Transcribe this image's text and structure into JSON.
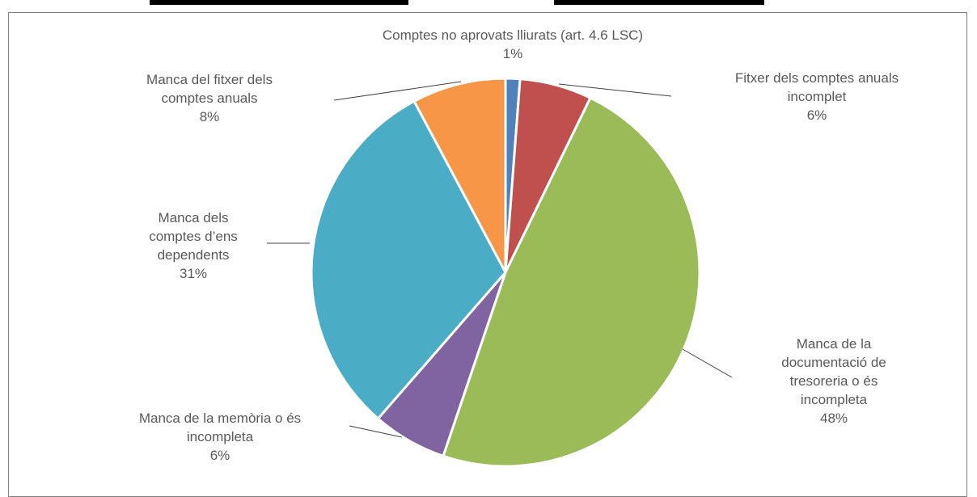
{
  "chart_data": {
    "type": "pie",
    "title": "",
    "slices": [
      {
        "label_lines": [
          "Comptes no aprovats lliurats (art. 4.6 LSC)"
        ],
        "pct_label": "1%",
        "value": 1.2,
        "color": "#4f81bd"
      },
      {
        "label_lines": [
          "Fitxer dels comptes anuals",
          "incomplet"
        ],
        "pct_label": "6%",
        "value": 6.0,
        "color": "#c0504d"
      },
      {
        "label_lines": [
          "Manca de la",
          "documentació de",
          "tresoreria o és",
          "incompleta"
        ],
        "pct_label": "48%",
        "value": 48.0,
        "color": "#9bbb59"
      },
      {
        "label_lines": [
          "Manca de la memòria o és",
          "incompleta"
        ],
        "pct_label": "6%",
        "value": 6.2,
        "color": "#8064a2"
      },
      {
        "label_lines": [
          "Manca dels",
          "comptes d’ens",
          "dependents"
        ],
        "pct_label": "31%",
        "value": 30.8,
        "color": "#4bacc6"
      },
      {
        "label_lines": [
          "Manca del fitxer dels",
          "comptes anuals"
        ],
        "pct_label": "8%",
        "value": 7.8,
        "color": "#f79646"
      }
    ],
    "legend": "none"
  }
}
